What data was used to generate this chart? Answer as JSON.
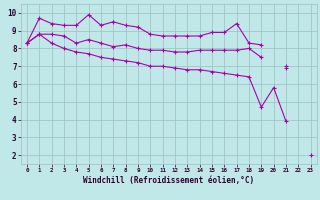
{
  "title": "",
  "xlabel": "Windchill (Refroidissement éolien,°C)",
  "bg_color": "#c0e8e8",
  "grid_color": "#9dbfbf",
  "line_color": "#aa00aa",
  "x": [
    0,
    1,
    2,
    3,
    4,
    5,
    6,
    7,
    8,
    9,
    10,
    11,
    12,
    13,
    14,
    15,
    16,
    17,
    18,
    19,
    20,
    21,
    22,
    23
  ],
  "line1": [
    8.3,
    9.7,
    9.4,
    9.3,
    9.3,
    9.9,
    9.3,
    9.5,
    9.3,
    9.2,
    8.8,
    8.7,
    8.7,
    8.7,
    8.7,
    8.9,
    8.9,
    9.4,
    8.3,
    8.2,
    null,
    6.9,
    null,
    null
  ],
  "line2": [
    8.3,
    8.8,
    8.8,
    8.7,
    8.3,
    8.5,
    8.3,
    8.1,
    8.2,
    8.0,
    7.9,
    7.9,
    7.8,
    7.8,
    7.9,
    7.9,
    7.9,
    7.9,
    8.0,
    7.5,
    null,
    7.0,
    null,
    null
  ],
  "line3": [
    8.3,
    8.8,
    8.3,
    8.0,
    7.8,
    7.7,
    7.5,
    7.4,
    7.3,
    7.2,
    7.0,
    7.0,
    6.9,
    6.8,
    6.8,
    6.7,
    6.6,
    6.5,
    6.4,
    4.7,
    5.8,
    3.9,
    null,
    2.0
  ],
  "xlim": [
    -0.5,
    23.5
  ],
  "ylim": [
    1.5,
    10.5
  ],
  "yticks": [
    2,
    3,
    4,
    5,
    6,
    7,
    8,
    9,
    10
  ],
  "xticks": [
    0,
    1,
    2,
    3,
    4,
    5,
    6,
    7,
    8,
    9,
    10,
    11,
    12,
    13,
    14,
    15,
    16,
    17,
    18,
    19,
    20,
    21,
    22,
    23
  ],
  "label_color": "#330033"
}
